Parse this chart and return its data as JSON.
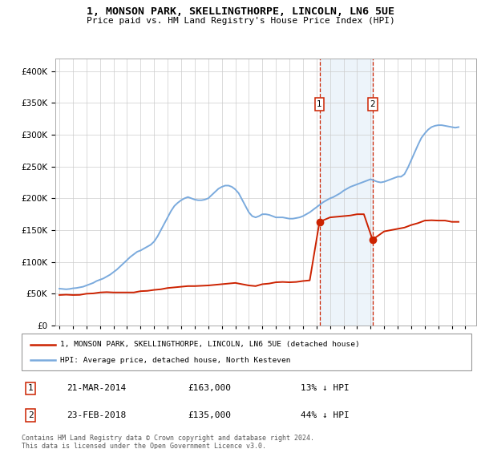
{
  "title": "1, MONSON PARK, SKELLINGTHORPE, LINCOLN, LN6 5UE",
  "subtitle": "Price paid vs. HM Land Registry's House Price Index (HPI)",
  "ytick_values": [
    0,
    50000,
    100000,
    150000,
    200000,
    250000,
    300000,
    350000,
    400000
  ],
  "ylim": [
    0,
    420000
  ],
  "marker1_date": 2014.22,
  "marker1_price": 163000,
  "marker1_label": "21-MAR-2014",
  "marker1_price_str": "£163,000",
  "marker1_pct": "13% ↓ HPI",
  "marker2_date": 2018.14,
  "marker2_price": 135000,
  "marker2_label": "23-FEB-2018",
  "marker2_price_str": "£135,000",
  "marker2_pct": "44% ↓ HPI",
  "hpi_color": "#7aaadd",
  "price_color": "#cc2200",
  "legend_label_price": "1, MONSON PARK, SKELLINGTHORPE, LINCOLN, LN6 5UE (detached house)",
  "legend_label_hpi": "HPI: Average price, detached house, North Kesteven",
  "footer": "Contains HM Land Registry data © Crown copyright and database right 2024.\nThis data is licensed under the Open Government Licence v3.0.",
  "hpi_years": [
    1995.0,
    1995.25,
    1995.5,
    1995.75,
    1996.0,
    1996.25,
    1996.5,
    1996.75,
    1997.0,
    1997.25,
    1997.5,
    1997.75,
    1998.0,
    1998.25,
    1998.5,
    1998.75,
    1999.0,
    1999.25,
    1999.5,
    1999.75,
    2000.0,
    2000.25,
    2000.5,
    2000.75,
    2001.0,
    2001.25,
    2001.5,
    2001.75,
    2002.0,
    2002.25,
    2002.5,
    2002.75,
    2003.0,
    2003.25,
    2003.5,
    2003.75,
    2004.0,
    2004.25,
    2004.5,
    2004.75,
    2005.0,
    2005.25,
    2005.5,
    2005.75,
    2006.0,
    2006.25,
    2006.5,
    2006.75,
    2007.0,
    2007.25,
    2007.5,
    2007.75,
    2008.0,
    2008.25,
    2008.5,
    2008.75,
    2009.0,
    2009.25,
    2009.5,
    2009.75,
    2010.0,
    2010.25,
    2010.5,
    2010.75,
    2011.0,
    2011.25,
    2011.5,
    2011.75,
    2012.0,
    2012.25,
    2012.5,
    2012.75,
    2013.0,
    2013.25,
    2013.5,
    2013.75,
    2014.0,
    2014.25,
    2014.5,
    2014.75,
    2015.0,
    2015.25,
    2015.5,
    2015.75,
    2016.0,
    2016.25,
    2016.5,
    2016.75,
    2017.0,
    2017.25,
    2017.5,
    2017.75,
    2018.0,
    2018.25,
    2018.5,
    2018.75,
    2019.0,
    2019.25,
    2019.5,
    2019.75,
    2020.0,
    2020.25,
    2020.5,
    2020.75,
    2021.0,
    2021.25,
    2021.5,
    2021.75,
    2022.0,
    2022.25,
    2022.5,
    2022.75,
    2023.0,
    2023.25,
    2023.5,
    2023.75,
    2024.0,
    2024.25,
    2024.5
  ],
  "hpi_values": [
    58000,
    57500,
    57000,
    57500,
    58500,
    59000,
    60000,
    61000,
    63000,
    65000,
    67000,
    70000,
    72000,
    74000,
    77000,
    80000,
    84000,
    88000,
    93000,
    98000,
    103000,
    108000,
    112000,
    116000,
    118000,
    121000,
    124000,
    127000,
    132000,
    140000,
    150000,
    160000,
    170000,
    180000,
    188000,
    193000,
    197000,
    200000,
    202000,
    200000,
    198000,
    197000,
    197000,
    198000,
    200000,
    205000,
    210000,
    215000,
    218000,
    220000,
    220000,
    218000,
    214000,
    208000,
    198000,
    188000,
    178000,
    172000,
    170000,
    172000,
    175000,
    175000,
    174000,
    172000,
    170000,
    170000,
    170000,
    169000,
    168000,
    168000,
    169000,
    170000,
    172000,
    175000,
    178000,
    182000,
    186000,
    190000,
    194000,
    197000,
    200000,
    202000,
    205000,
    208000,
    212000,
    215000,
    218000,
    220000,
    222000,
    224000,
    226000,
    228000,
    230000,
    228000,
    226000,
    225000,
    226000,
    228000,
    230000,
    232000,
    234000,
    234000,
    238000,
    248000,
    260000,
    272000,
    284000,
    295000,
    302000,
    308000,
    312000,
    314000,
    315000,
    315000,
    314000,
    313000,
    312000,
    311000,
    312000
  ],
  "price_years": [
    1995.0,
    1995.5,
    1996.0,
    1996.5,
    1997.0,
    1997.5,
    1998.0,
    1998.5,
    1999.0,
    1999.5,
    2000.0,
    2000.5,
    2001.0,
    2001.5,
    2002.0,
    2002.5,
    2003.0,
    2003.5,
    2004.0,
    2004.5,
    2005.0,
    2005.5,
    2006.0,
    2006.5,
    2007.0,
    2007.5,
    2008.0,
    2008.5,
    2009.0,
    2009.5,
    2010.0,
    2010.5,
    2011.0,
    2011.5,
    2012.0,
    2012.5,
    2013.0,
    2013.5,
    2014.22,
    2015.0,
    2015.5,
    2016.0,
    2016.5,
    2017.0,
    2017.5,
    2018.14,
    2019.0,
    2019.5,
    2020.0,
    2020.5,
    2021.0,
    2021.5,
    2022.0,
    2022.5,
    2023.0,
    2023.5,
    2024.0,
    2024.5
  ],
  "price_values": [
    48000,
    48500,
    48000,
    48200,
    50000,
    50500,
    52000,
    52500,
    52000,
    52000,
    52000,
    52000,
    54000,
    54500,
    56000,
    57000,
    59000,
    60000,
    61000,
    62000,
    62000,
    62500,
    63000,
    64000,
    65000,
    66000,
    67000,
    65000,
    63000,
    62000,
    65000,
    66000,
    68000,
    68500,
    68000,
    68500,
    70000,
    71000,
    163000,
    170000,
    171000,
    172000,
    173000,
    175000,
    175000,
    135000,
    148000,
    150000,
    152000,
    154000,
    158000,
    161000,
    165000,
    165500,
    165000,
    165000,
    163000,
    163000
  ]
}
